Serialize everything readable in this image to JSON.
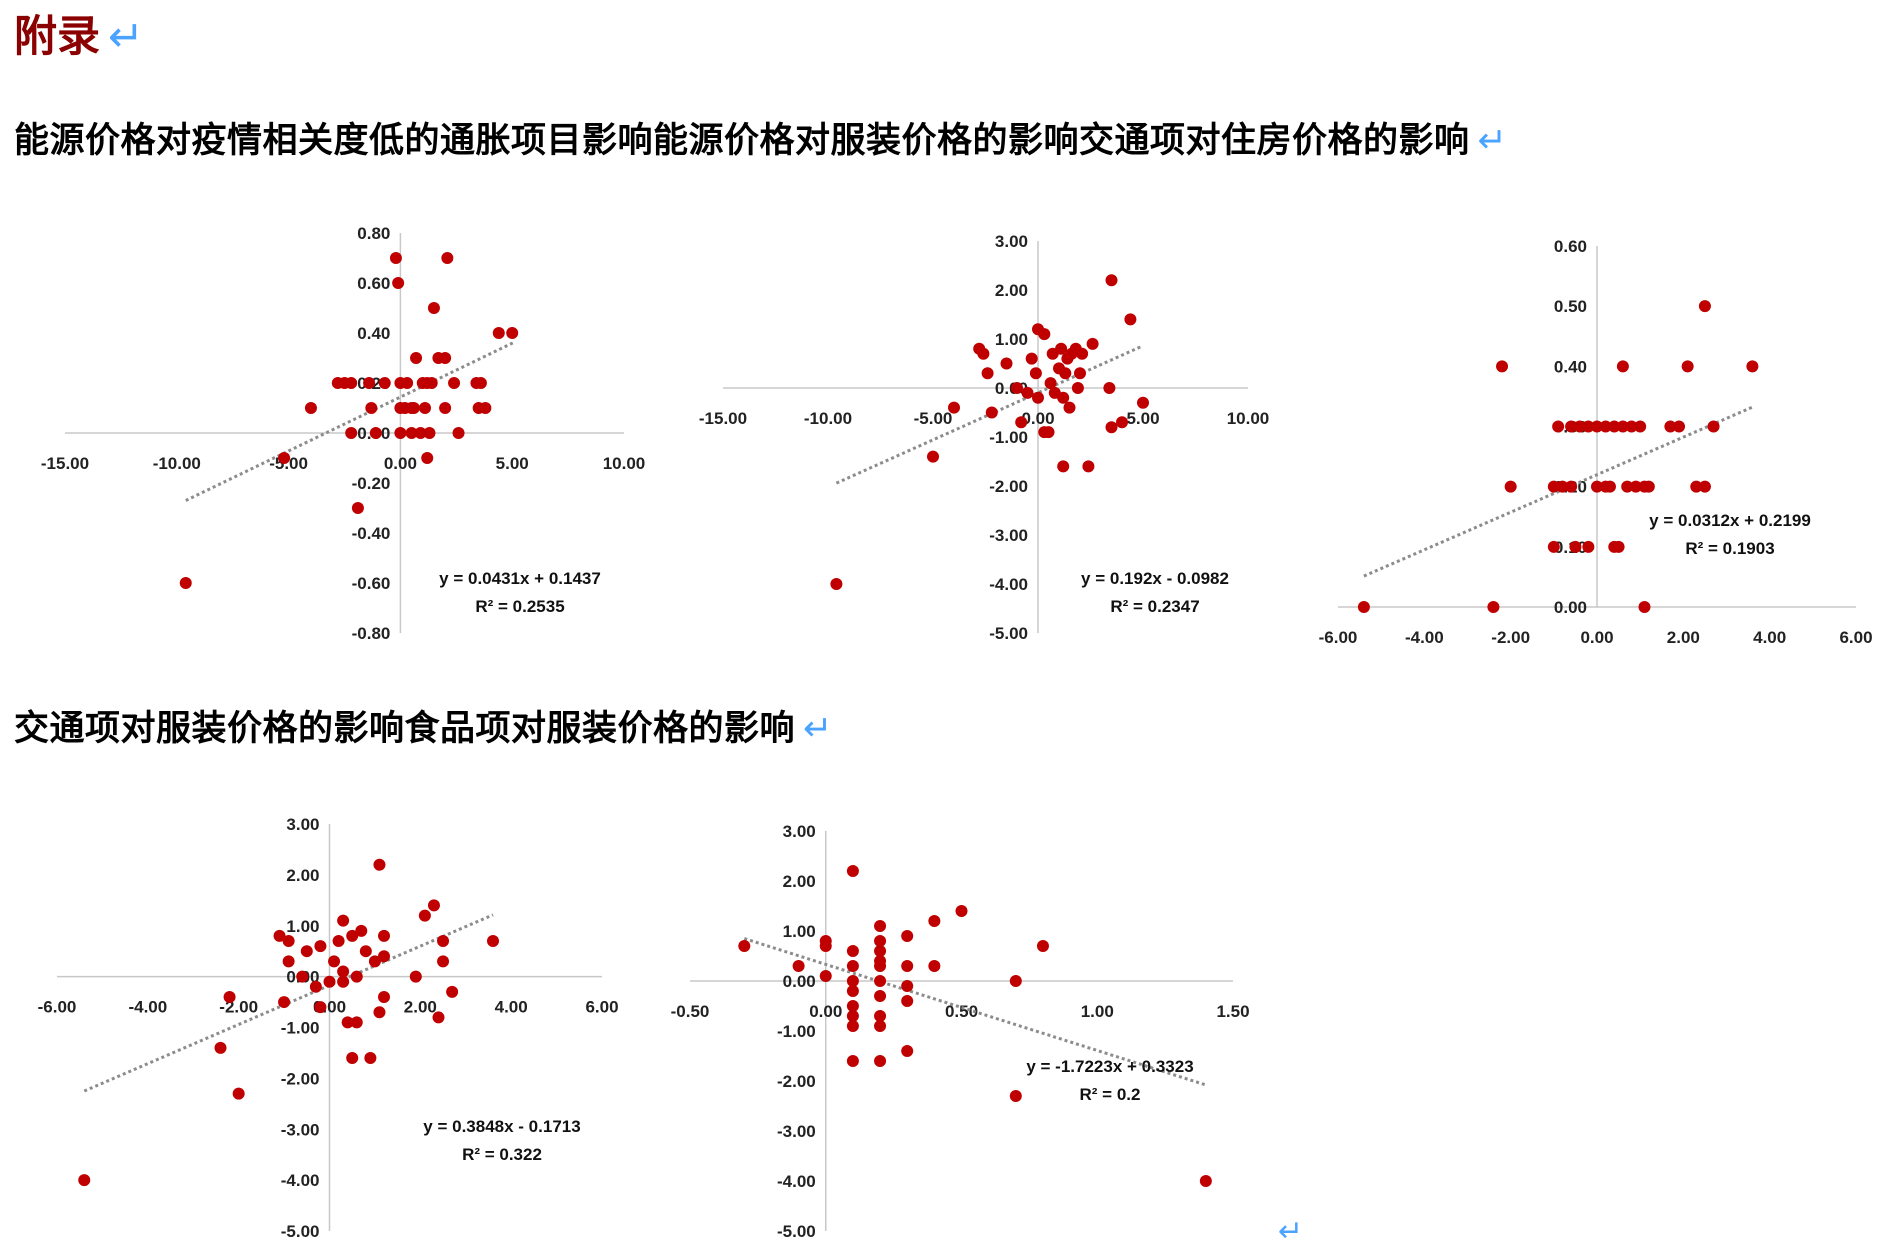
{
  "appendix": {
    "title": "附录",
    "return_mark": "↵"
  },
  "headings": [
    {
      "text": "能源价格对疫情相关度低的通胀项目影响能源价格对服装价格的影响交通项对住房价格的影响",
      "mark": "↵"
    },
    {
      "text": "交通项对服装价格的影响食品项对服装价格的影响",
      "mark": "↵"
    }
  ],
  "trailing_mark": "↵",
  "colors": {
    "point": "#c00000",
    "axis": "#c8c8c8",
    "trend": "#8c8c8c",
    "heading_accent": "#8b0000",
    "return_mark": "#4aa3ff"
  },
  "chart_data": [
    {
      "type": "scatter",
      "title": "",
      "xlabel": "",
      "ylabel": "",
      "xlim": [
        -15,
        10
      ],
      "ylim": [
        -0.8,
        0.8
      ],
      "xticks": [
        -15,
        -10,
        -5,
        0,
        5,
        10
      ],
      "xtick_labels": [
        "-15.00",
        "-10.00",
        "-5.00",
        "0.00",
        "5.00",
        "10.00"
      ],
      "yticks": [
        -0.8,
        -0.6,
        -0.4,
        -0.2,
        0,
        0.2,
        0.4,
        0.6,
        0.8
      ],
      "ytick_labels": [
        "-0.80",
        "-0.60",
        "-0.40",
        "-0.20",
        "0.00",
        "0.20",
        "0.40",
        "0.60",
        "0.80"
      ],
      "grid": false,
      "trendline": {
        "slope": 0.0431,
        "intercept": 0.1437,
        "x_range": [
          -9.6,
          5.1
        ]
      },
      "equation": "y = 0.0431x + 0.1437",
      "r2": "R² = 0.2535",
      "points": [
        [
          -9.6,
          -0.6
        ],
        [
          -5.2,
          -0.1
        ],
        [
          -4,
          0.1
        ],
        [
          -2.8,
          0.2
        ],
        [
          -2.5,
          0.2
        ],
        [
          -2.2,
          0.2
        ],
        [
          -2.2,
          0
        ],
        [
          -1.9,
          -0.3
        ],
        [
          -1.4,
          0.2
        ],
        [
          -1.3,
          0.1
        ],
        [
          -1.1,
          0
        ],
        [
          -0.7,
          0.2
        ],
        [
          -0.2,
          0.7
        ],
        [
          -0.1,
          0.6
        ],
        [
          0,
          0.2
        ],
        [
          0,
          0.1
        ],
        [
          0,
          0
        ],
        [
          0.2,
          0.1
        ],
        [
          0.3,
          0.2
        ],
        [
          0.5,
          0
        ],
        [
          0.5,
          0.1
        ],
        [
          0.6,
          0.1
        ],
        [
          0.7,
          0.3
        ],
        [
          0.9,
          0
        ],
        [
          1,
          0.2
        ],
        [
          1.1,
          0.1
        ],
        [
          1.2,
          0.2
        ],
        [
          1.2,
          -0.1
        ],
        [
          1.3,
          0
        ],
        [
          1.4,
          0.2
        ],
        [
          1.5,
          0.5
        ],
        [
          1.7,
          0.3
        ],
        [
          2,
          0.3
        ],
        [
          2,
          0.1
        ],
        [
          2.1,
          0.7
        ],
        [
          2.4,
          0.2
        ],
        [
          2.6,
          0
        ],
        [
          3.4,
          0.2
        ],
        [
          3.5,
          0.1
        ],
        [
          3.6,
          0.2
        ],
        [
          3.8,
          0.1
        ],
        [
          4.4,
          0.4
        ],
        [
          5,
          0.4
        ]
      ]
    },
    {
      "type": "scatter",
      "title": "",
      "xlabel": "",
      "ylabel": "",
      "xlim": [
        -15,
        10
      ],
      "ylim": [
        -5,
        3
      ],
      "xticks": [
        -15,
        -10,
        -5,
        0,
        5,
        10
      ],
      "xtick_labels": [
        "-15.00",
        "-10.00",
        "-5.00",
        "0.00",
        "5.00",
        "10.00"
      ],
      "yticks": [
        -5,
        -4,
        -3,
        -2,
        -1,
        0,
        1,
        2,
        3
      ],
      "ytick_labels": [
        "-5.00",
        "-4.00",
        "-3.00",
        "-2.00",
        "-1.00",
        "0.00",
        "1.00",
        "2.00",
        "3.00"
      ],
      "grid": false,
      "trendline": {
        "slope": 0.192,
        "intercept": -0.0982,
        "x_range": [
          -9.6,
          5
        ]
      },
      "equation": "y = 0.192x - 0.0982",
      "r2": "R² = 0.2347",
      "points": [
        [
          -9.6,
          -4
        ],
        [
          -5,
          -1.4
        ],
        [
          -4,
          -0.4
        ],
        [
          -2.8,
          0.8
        ],
        [
          -2.6,
          0.7
        ],
        [
          -2.4,
          0.3
        ],
        [
          -2.2,
          -0.5
        ],
        [
          -1.5,
          0.5
        ],
        [
          -1,
          0
        ],
        [
          -0.8,
          -0.7
        ],
        [
          -0.5,
          -0.1
        ],
        [
          -0.3,
          0.6
        ],
        [
          -0.1,
          0.3
        ],
        [
          0,
          1.2
        ],
        [
          0,
          -0.2
        ],
        [
          0.3,
          1.1
        ],
        [
          0.3,
          -0.9
        ],
        [
          0.5,
          -0.9
        ],
        [
          0.6,
          0.1
        ],
        [
          0.7,
          0.7
        ],
        [
          0.8,
          -0.1
        ],
        [
          1,
          0.4
        ],
        [
          1.1,
          0.8
        ],
        [
          1.2,
          -0.2
        ],
        [
          1.2,
          -1.6
        ],
        [
          1.3,
          0.3
        ],
        [
          1.4,
          0.6
        ],
        [
          1.5,
          -0.4
        ],
        [
          1.6,
          0.7
        ],
        [
          1.8,
          0.8
        ],
        [
          1.9,
          0
        ],
        [
          2,
          0.3
        ],
        [
          2.1,
          0.7
        ],
        [
          2.4,
          -1.6
        ],
        [
          2.6,
          0.9
        ],
        [
          3.4,
          0
        ],
        [
          3.5,
          2.2
        ],
        [
          3.5,
          -0.8
        ],
        [
          4,
          -0.7
        ],
        [
          4.4,
          1.4
        ],
        [
          5,
          -0.3
        ]
      ]
    },
    {
      "type": "scatter",
      "title": "",
      "xlabel": "",
      "ylabel": "",
      "xlim": [
        -6,
        6
      ],
      "ylim": [
        0,
        0.6
      ],
      "xticks": [
        -6,
        -4,
        -2,
        0,
        2,
        4,
        6
      ],
      "xtick_labels": [
        "-6.00",
        "-4.00",
        "-2.00",
        "0.00",
        "2.00",
        "4.00",
        "6.00"
      ],
      "yticks": [
        0,
        0.1,
        0.2,
        0.3,
        0.4,
        0.5,
        0.6
      ],
      "ytick_labels": [
        "0.00",
        "0.10",
        "0.20",
        "0.30",
        "0.40",
        "0.50",
        "0.60"
      ],
      "grid": false,
      "trendline": {
        "slope": 0.0312,
        "intercept": 0.2199,
        "x_range": [
          -5.4,
          3.6
        ]
      },
      "equation": "y = 0.0312x + 0.2199",
      "r2": "R² = 0.1903",
      "points": [
        [
          -5.4,
          0
        ],
        [
          -2.4,
          0
        ],
        [
          -2.2,
          0.4
        ],
        [
          -2,
          0.2
        ],
        [
          -1,
          0.2
        ],
        [
          -1,
          0.1
        ],
        [
          -0.9,
          0.3
        ],
        [
          -0.8,
          0.2
        ],
        [
          -0.6,
          0.3
        ],
        [
          -0.6,
          0.2
        ],
        [
          -0.5,
          0.1
        ],
        [
          -0.4,
          0.3
        ],
        [
          -0.2,
          0.3
        ],
        [
          -0.2,
          0.1
        ],
        [
          0,
          0.3
        ],
        [
          0,
          0.2
        ],
        [
          0.2,
          0.3
        ],
        [
          0.2,
          0.2
        ],
        [
          0.3,
          0.2
        ],
        [
          0.4,
          0.3
        ],
        [
          0.4,
          0.1
        ],
        [
          0.5,
          0.1
        ],
        [
          0.6,
          0.3
        ],
        [
          0.6,
          0.4
        ],
        [
          0.7,
          0.2
        ],
        [
          0.8,
          0.3
        ],
        [
          0.9,
          0.2
        ],
        [
          1,
          0.3
        ],
        [
          1.1,
          0.2
        ],
        [
          1.1,
          0
        ],
        [
          1.2,
          0.2
        ],
        [
          1.7,
          0.3
        ],
        [
          1.9,
          0.3
        ],
        [
          2.1,
          0.4
        ],
        [
          2.3,
          0.2
        ],
        [
          2.5,
          0.2
        ],
        [
          2.5,
          0.5
        ],
        [
          2.7,
          0.3
        ],
        [
          3.6,
          0.4
        ]
      ]
    },
    {
      "type": "scatter",
      "title": "",
      "xlabel": "",
      "ylabel": "",
      "xlim": [
        -6,
        6
      ],
      "ylim": [
        -5,
        3
      ],
      "xticks": [
        -6,
        -4,
        -2,
        0,
        2,
        4,
        6
      ],
      "xtick_labels": [
        "-6.00",
        "-4.00",
        "-2.00",
        "0.00",
        "2.00",
        "4.00",
        "6.00"
      ],
      "yticks": [
        -5,
        -4,
        -3,
        -2,
        -1,
        0,
        1,
        2,
        3
      ],
      "ytick_labels": [
        "-5.00",
        "-4.00",
        "-3.00",
        "-2.00",
        "-1.00",
        "0.00",
        "1.00",
        "2.00",
        "3.00"
      ],
      "grid": false,
      "trendline": {
        "slope": 0.3848,
        "intercept": -0.1713,
        "x_range": [
          -5.4,
          3.6
        ]
      },
      "equation": "y = 0.3848x - 0.1713",
      "r2": "R² = 0.322",
      "points": [
        [
          -5.4,
          -4
        ],
        [
          -2.4,
          -1.4
        ],
        [
          -2.2,
          -0.4
        ],
        [
          -2,
          -2.3
        ],
        [
          -1.1,
          0.8
        ],
        [
          -1,
          -0.5
        ],
        [
          -0.9,
          0.7
        ],
        [
          -0.9,
          0.3
        ],
        [
          -0.6,
          0
        ],
        [
          -0.5,
          0.5
        ],
        [
          -0.3,
          -0.2
        ],
        [
          -0.2,
          0.6
        ],
        [
          -0.2,
          -0.6
        ],
        [
          0,
          -0.1
        ],
        [
          0.1,
          0.3
        ],
        [
          0.2,
          0.7
        ],
        [
          0.3,
          -0.1
        ],
        [
          0.3,
          1.1
        ],
        [
          0.3,
          0.1
        ],
        [
          0.4,
          -0.9
        ],
        [
          0.5,
          0.8
        ],
        [
          0.5,
          -1.6
        ],
        [
          0.6,
          -0.9
        ],
        [
          0.6,
          0
        ],
        [
          0.7,
          0.9
        ],
        [
          0.8,
          0.5
        ],
        [
          0.9,
          -1.6
        ],
        [
          1,
          0.3
        ],
        [
          1.1,
          2.2
        ],
        [
          1.1,
          -0.7
        ],
        [
          1.2,
          0.8
        ],
        [
          1.2,
          0.4
        ],
        [
          1.2,
          -0.4
        ],
        [
          1.9,
          0
        ],
        [
          2.1,
          1.2
        ],
        [
          2.3,
          1.4
        ],
        [
          2.4,
          -0.8
        ],
        [
          2.5,
          0.7
        ],
        [
          2.5,
          0.3
        ],
        [
          2.7,
          -0.3
        ],
        [
          3.6,
          0.7
        ]
      ]
    },
    {
      "type": "scatter",
      "title": "",
      "xlabel": "",
      "ylabel": "",
      "xlim": [
        -0.5,
        1.5
      ],
      "ylim": [
        -5,
        3
      ],
      "xticks": [
        -0.5,
        0,
        0.5,
        1,
        1.5
      ],
      "xtick_labels": [
        "-0.50",
        "0.00",
        "0.50",
        "1.00",
        "1.50"
      ],
      "yticks": [
        -5,
        -4,
        -3,
        -2,
        -1,
        0,
        1,
        2,
        3
      ],
      "ytick_labels": [
        "-5.00",
        "-4.00",
        "-3.00",
        "-2.00",
        "-1.00",
        "0.00",
        "1.00",
        "2.00",
        "3.00"
      ],
      "grid": false,
      "trendline": {
        "slope": -1.7223,
        "intercept": 0.3323,
        "x_range": [
          -0.3,
          1.4
        ]
      },
      "equation": "y = -1.7223x + 0.3323",
      "r2": "R² = 0.2",
      "points": [
        [
          -0.3,
          0.7
        ],
        [
          -0.1,
          0.3
        ],
        [
          0,
          0.8
        ],
        [
          0,
          0.1
        ],
        [
          0,
          0.7
        ],
        [
          0.1,
          0
        ],
        [
          0.1,
          -0.2
        ],
        [
          0.1,
          -0.5
        ],
        [
          0.1,
          -0.7
        ],
        [
          0.1,
          -0.9
        ],
        [
          0.1,
          -1.6
        ],
        [
          0.1,
          0.3
        ],
        [
          0.1,
          0.6
        ],
        [
          0.1,
          2.2
        ],
        [
          0.2,
          0.3
        ],
        [
          0.2,
          0.6
        ],
        [
          0.2,
          0
        ],
        [
          0.2,
          -0.3
        ],
        [
          0.2,
          -0.7
        ],
        [
          0.2,
          -0.9
        ],
        [
          0.2,
          -1.6
        ],
        [
          0.2,
          1.1
        ],
        [
          0.2,
          0.4
        ],
        [
          0.2,
          0.8
        ],
        [
          0.3,
          0.3
        ],
        [
          0.3,
          -0.1
        ],
        [
          0.3,
          -0.4
        ],
        [
          0.3,
          -1.4
        ],
        [
          0.3,
          0.9
        ],
        [
          0.4,
          0.3
        ],
        [
          0.4,
          1.2
        ],
        [
          0.5,
          1.4
        ],
        [
          0.7,
          0
        ],
        [
          0.7,
          -2.3
        ],
        [
          0.8,
          0.7
        ],
        [
          1.4,
          -4
        ]
      ]
    }
  ]
}
